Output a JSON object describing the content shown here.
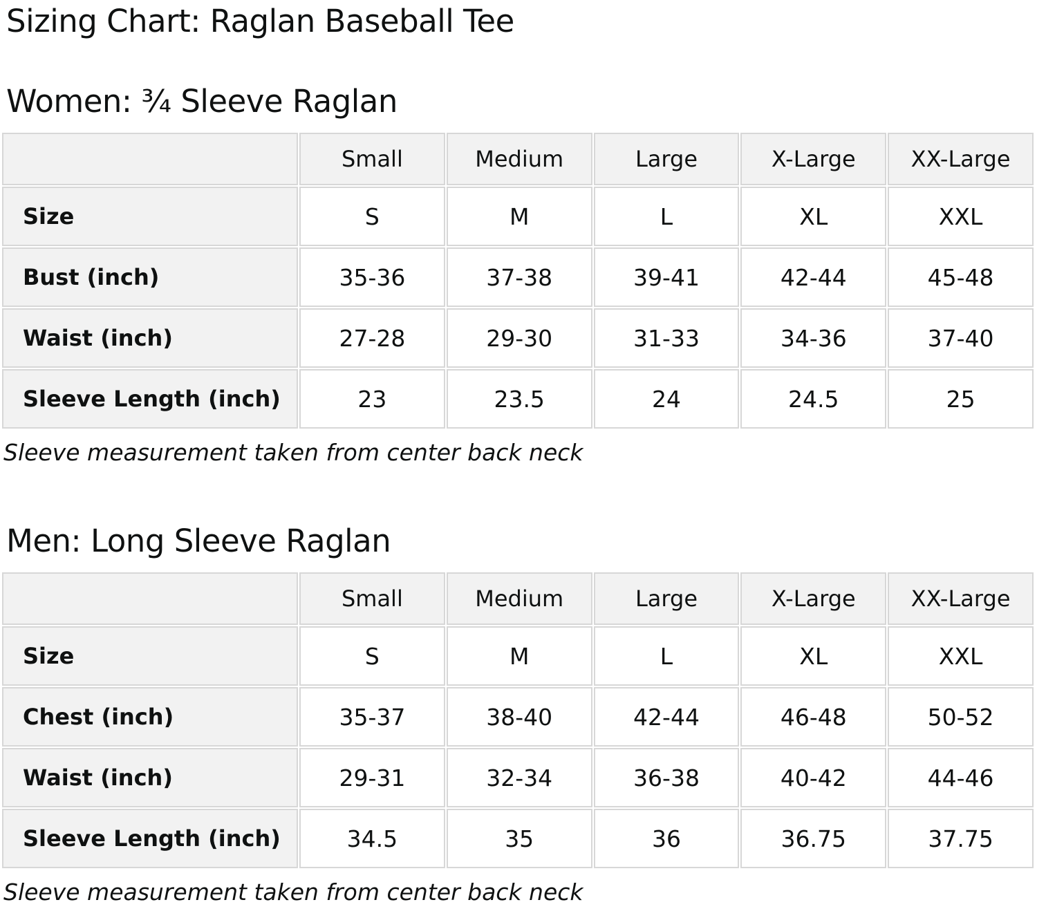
{
  "page": {
    "title": "Sizing Chart: Raglan Baseball Tee"
  },
  "sections": [
    {
      "heading": "Women: ¾ Sleeve Raglan",
      "note": "Sleeve measurement taken from center back neck",
      "table": {
        "headers": [
          "Small",
          "Medium",
          "Large",
          "X-Large",
          "XX-Large"
        ],
        "rows": [
          {
            "label": "Size",
            "values": [
              "S",
              "M",
              "L",
              "XL",
              "XXL"
            ]
          },
          {
            "label": "Bust (inch)",
            "values": [
              "35-36",
              "37-38",
              "39-41",
              "42-44",
              "45-48"
            ]
          },
          {
            "label": "Waist (inch)",
            "values": [
              "27-28",
              "29-30",
              "31-33",
              "34-36",
              "37-40"
            ]
          },
          {
            "label": "Sleeve Length (inch)",
            "values": [
              "23",
              "23.5",
              "24",
              "24.5",
              "25"
            ]
          }
        ]
      }
    },
    {
      "heading": "Men: Long Sleeve Raglan",
      "note": "Sleeve measurement taken from center back neck",
      "table": {
        "headers": [
          "Small",
          "Medium",
          "Large",
          "X-Large",
          "XX-Large"
        ],
        "rows": [
          {
            "label": "Size",
            "values": [
              "S",
              "M",
              "L",
              "XL",
              "XXL"
            ]
          },
          {
            "label": "Chest (inch)",
            "values": [
              "35-37",
              "38-40",
              "42-44",
              "46-48",
              "50-52"
            ]
          },
          {
            "label": "Waist (inch)",
            "values": [
              "29-31",
              "32-34",
              "36-38",
              "40-42",
              "44-46"
            ]
          },
          {
            "label": "Sleeve Length (inch)",
            "values": [
              "34.5",
              "35",
              "36",
              "36.75",
              "37.75"
            ]
          }
        ]
      }
    }
  ],
  "colors": {
    "text": "#0f1111",
    "cell_shaded_bg": "#f2f2f2",
    "cell_value_bg": "#ffffff",
    "table_border": "#d7d7d7",
    "page_bg": "#ffffff"
  }
}
